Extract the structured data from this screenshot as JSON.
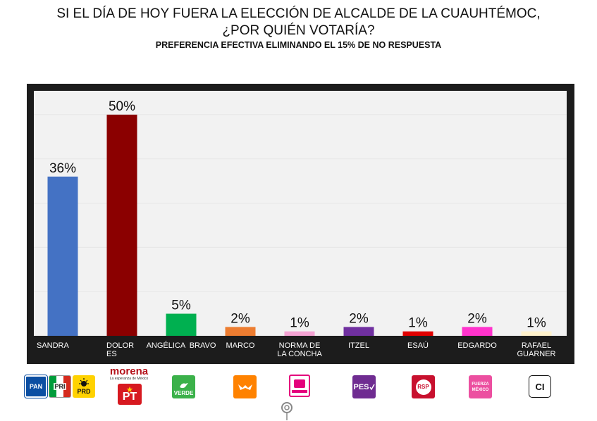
{
  "title_line1": "SI EL DÍA DE HOY FUERA LA ELECCIÓN DE ALCALDE DE LA CUAUHTÉMOC,",
  "title_line2": "¿POR QUIÉN VOTARÍA?",
  "subtitle": "PREFERENCIA EFECTIVA ELIMINANDO EL 15% DE NO RESPUESTA",
  "chart_data": {
    "type": "bar",
    "categories": [
      "SANDRA",
      "DOLOR ES",
      "ANGÉLICA BRAVO",
      "MARCO",
      "NORMA DE LA CONCHA",
      "ITZEL",
      "ESAÚ",
      "EDGARDO",
      "RAFAEL GUARNER"
    ],
    "category_lines": [
      [
        "SANDRA"
      ],
      [
        "DOLOR",
        "ES"
      ],
      [
        "ANGÉLICA  BRAVO"
      ],
      [
        "MARCO"
      ],
      [
        "NORMA DE",
        "LA CONCHA"
      ],
      [
        "ITZEL"
      ],
      [
        "ESAÚ"
      ],
      [
        "EDGARDO"
      ],
      [
        "RAFAEL",
        "GUARNER"
      ]
    ],
    "values": [
      36,
      50,
      5,
      2,
      1,
      2,
      1,
      2,
      1
    ],
    "data_labels": [
      "36%",
      "50%",
      "5%",
      "2%",
      "1%",
      "2%",
      "1%",
      "2%",
      "1%"
    ],
    "colors": [
      "#4472c4",
      "#8b0000",
      "#00b050",
      "#ed7d31",
      "#f4a3d3",
      "#7030a0",
      "#e00000",
      "#ff33cc",
      "#fff2cc"
    ],
    "ylim": [
      0,
      56
    ],
    "grid": true
  },
  "logos": {
    "pan": "PAN",
    "pri": "PRI",
    "prd": "PRD",
    "morena": "morena",
    "morena_tagline": "La esperanza de México",
    "pt": "PT",
    "verde": "VERDE",
    "pes": "PES",
    "rsp": "RSP",
    "fuerza_line1": "FUERZA",
    "fuerza_line2": "MÉXICO",
    "ci": "CI",
    "colors": {
      "pan": "#0b4ea2",
      "pri_green": "#009c3b",
      "pri_red": "#d52b1e",
      "prd": "#ffd200",
      "morena": "#b5121b",
      "pt": "#d71920",
      "verde": "#3bb14a",
      "mc": "#ff8200",
      "pes": "#6f2c91",
      "rsp": "#c8102e",
      "fuerza": "#ec4fa0"
    }
  }
}
